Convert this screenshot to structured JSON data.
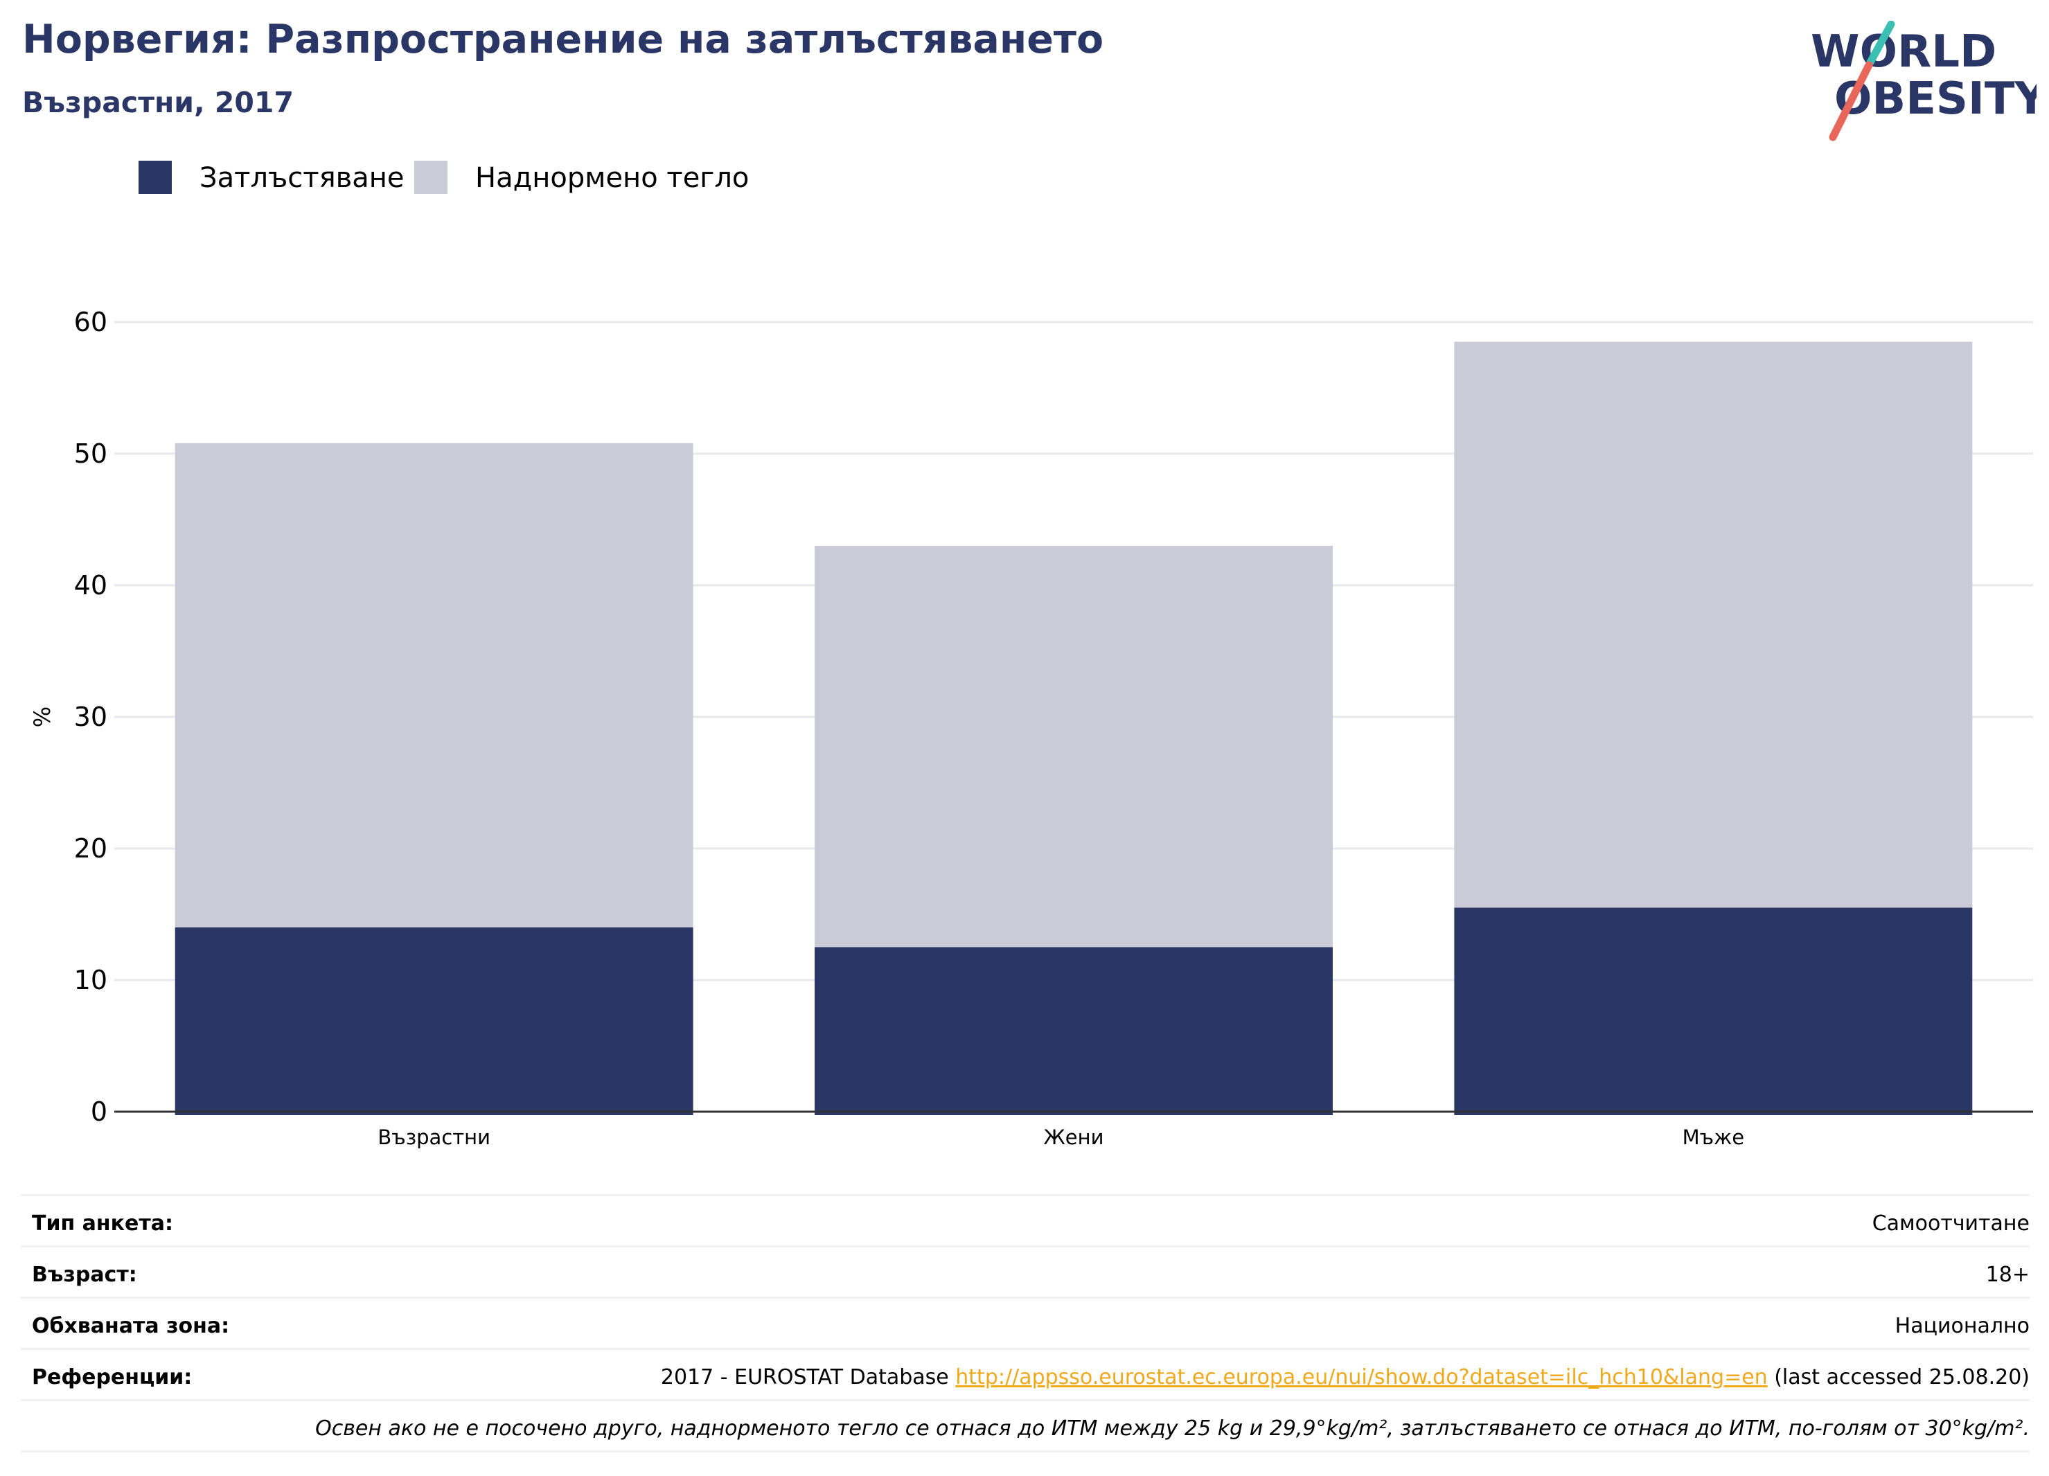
{
  "header": {
    "title": "Норвегия: Разпространение на затлъстяването",
    "subtitle": "Възрастни, 2017"
  },
  "logo": {
    "line1": "WORLD",
    "line2": "OBESITY",
    "colors": {
      "text": "#2a3665",
      "slash_top": "#3bbfb2",
      "slash_bottom": "#e8675a"
    }
  },
  "legend": {
    "items": [
      {
        "label": "Затлъстяване",
        "color": "#2a3665"
      },
      {
        "label": "Наднормено тегло",
        "color": "#cacbd7"
      }
    ]
  },
  "chart_data": {
    "type": "bar",
    "stacked": true,
    "categories": [
      "Възрастни",
      "Жени",
      "Мъже"
    ],
    "series": [
      {
        "name": "Затлъстяване",
        "values": [
          14.0,
          12.5,
          15.5
        ],
        "color": "#2a3665"
      },
      {
        "name": "Наднормено тегло",
        "values": [
          36.8,
          30.5,
          43.0
        ],
        "color": "#cacbd7"
      }
    ],
    "ylabel": "%",
    "xlabel": "",
    "ylim": [
      0,
      60
    ],
    "yticks": [
      0,
      10,
      20,
      30,
      40,
      50,
      60
    ],
    "grid": true,
    "legend_position": "top-left"
  },
  "info_table": {
    "rows": [
      {
        "key": "Тип анкета:",
        "value": "Самоотчитане"
      },
      {
        "key": "Възраст:",
        "value": "18+"
      },
      {
        "key": "Обхваната зона:",
        "value": "Национално"
      },
      {
        "key": "Референции:",
        "value_prefix": "2017 - EUROSTAT Database ",
        "link": "http://appsso.eurostat.ec.europa.eu/nui/show.do?dataset=ilc_hch10&lang=en",
        "value_suffix": " (last accessed 25.08.20)"
      }
    ],
    "note": "Освен ако не е посочено друго, наднорменото тегло се отнася до ИТМ между 25 kg и 29,9°kg/m², затлъстяването се отнася до ИТМ, по-голям от 30°kg/m²."
  }
}
